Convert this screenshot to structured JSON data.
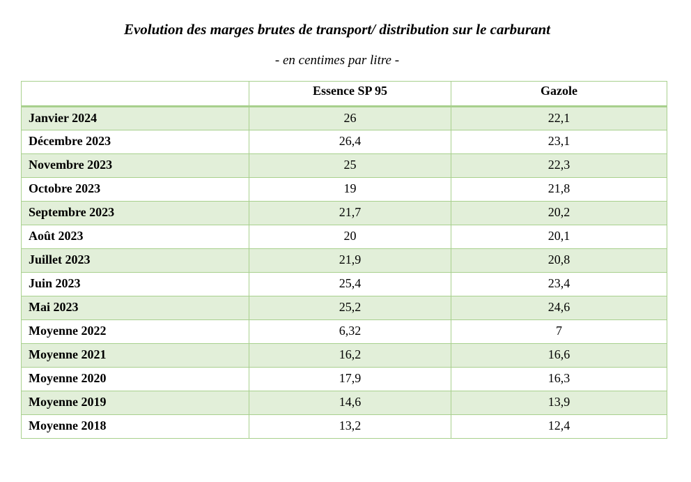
{
  "title": "Evolution des marges brutes de transport/ distribution sur le carburant",
  "subtitle": "- en centimes par litre -",
  "table": {
    "headers": [
      "",
      "Essence SP 95",
      "Gazole"
    ],
    "rows": [
      {
        "label": "Janvier 2024",
        "essence": "26",
        "gazole": "22,1"
      },
      {
        "label": "Décembre 2023",
        "essence": "26,4",
        "gazole": "23,1"
      },
      {
        "label": "Novembre 2023",
        "essence": "25",
        "gazole": "22,3"
      },
      {
        "label": "Octobre 2023",
        "essence": "19",
        "gazole": "21,8"
      },
      {
        "label": "Septembre 2023",
        "essence": "21,7",
        "gazole": "20,2"
      },
      {
        "label": "Août 2023",
        "essence": "20",
        "gazole": "20,1"
      },
      {
        "label": "Juillet 2023",
        "essence": "21,9",
        "gazole": "20,8"
      },
      {
        "label": "Juin 2023",
        "essence": "25,4",
        "gazole": "23,4"
      },
      {
        "label": "Mai 2023",
        "essence": "25,2",
        "gazole": "24,6"
      },
      {
        "label": "Moyenne 2022",
        "essence": "6,32",
        "gazole": "7"
      },
      {
        "label": "Moyenne 2021",
        "essence": "16,2",
        "gazole": "16,6"
      },
      {
        "label": "Moyenne 2020",
        "essence": "17,9",
        "gazole": "16,3"
      },
      {
        "label": "Moyenne 2019",
        "essence": "14,6",
        "gazole": "13,9"
      },
      {
        "label": "Moyenne 2018",
        "essence": "13,2",
        "gazole": "12,4"
      }
    ]
  },
  "colors": {
    "border": "#a8d08d",
    "band": "#e2efd9"
  }
}
